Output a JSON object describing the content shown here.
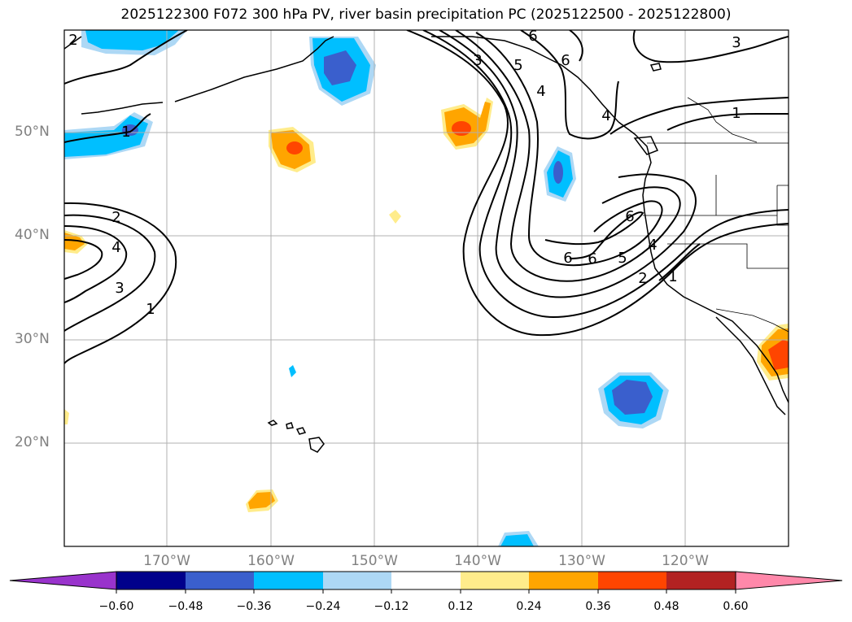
{
  "title": "2025122300 F072 300 hPa PV, river basin precipitation PC (2025122500 - 2025122800)",
  "lat_labels": [
    "50°N",
    "40°N",
    "30°N",
    "20°N"
  ],
  "lon_labels": [
    "170°W",
    "160°W",
    "150°W",
    "140°W",
    "130°W",
    "120°W"
  ],
  "contour_labels": [
    "2",
    "3",
    "5",
    "6",
    "4",
    "6",
    "4",
    "1",
    "2",
    "4",
    "3",
    "1",
    "6",
    "6",
    "6",
    "5",
    "4",
    "2",
    "1",
    "3",
    "1"
  ],
  "colorbar": {
    "ticks": [
      "−0.60",
      "−0.48",
      "−0.36",
      "−0.24",
      "−0.12",
      "0.12",
      "0.24",
      "0.36",
      "0.48",
      "0.60"
    ],
    "colors": [
      "#9933cc",
      "#00008b",
      "#3a5fcd",
      "#00bfff",
      "#add8f5",
      "#ffffff",
      "#ffec8b",
      "#ffa500",
      "#ff4500",
      "#b22222",
      "#ff88aa"
    ]
  }
}
